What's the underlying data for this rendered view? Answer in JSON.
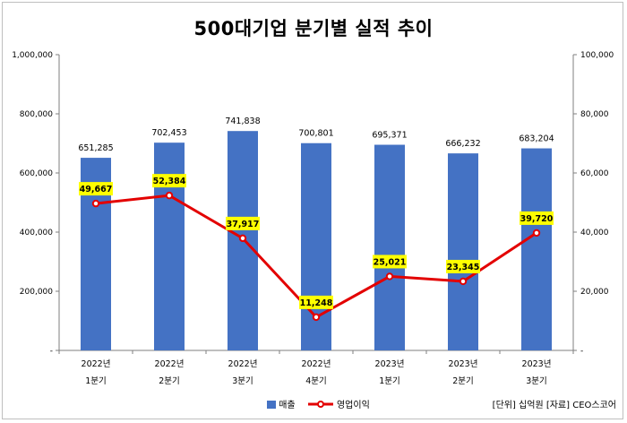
{
  "title": "500대기업 분기별 실적 추이",
  "note": "[단위] 십억원 [자료] CEO스코어",
  "chart_data": {
    "type": "bar",
    "categories": [
      [
        "2022년",
        "1분기"
      ],
      [
        "2022년",
        "2분기"
      ],
      [
        "2022년",
        "3분기"
      ],
      [
        "2022년",
        "4분기"
      ],
      [
        "2023년",
        "1분기"
      ],
      [
        "2023년",
        "2분기"
      ],
      [
        "2023년",
        "3분기"
      ]
    ],
    "series": [
      {
        "name": "매출",
        "type": "bar",
        "axis": "left",
        "color": "#4472c4",
        "values": [
          651285,
          702453,
          741838,
          700801,
          695371,
          666232,
          683204
        ],
        "labels": [
          "651,285",
          "702,453",
          "741,838",
          "700,801",
          "695,371",
          "666,232",
          "683,204"
        ]
      },
      {
        "name": "영업이익",
        "type": "line",
        "axis": "right",
        "color": "#e30000",
        "label_bg": "#ffff00",
        "values": [
          49667,
          52384,
          37917,
          11248,
          25021,
          23345,
          39720
        ],
        "labels": [
          "49,667",
          "52,384",
          "37,917",
          "11,248",
          "25,021",
          "23,345",
          "39,720"
        ]
      }
    ],
    "y_left": {
      "ylim": [
        0,
        1000000
      ],
      "ticks": [
        "-",
        "200,000",
        "400,000",
        "600,000",
        "800,000",
        "1,000,000"
      ]
    },
    "y_right": {
      "ylim": [
        0,
        100000
      ],
      "ticks": [
        "-",
        "20,000",
        "40,000",
        "60,000",
        "80,000",
        "100,000"
      ]
    },
    "grid": false,
    "legend": "bottom-center"
  }
}
